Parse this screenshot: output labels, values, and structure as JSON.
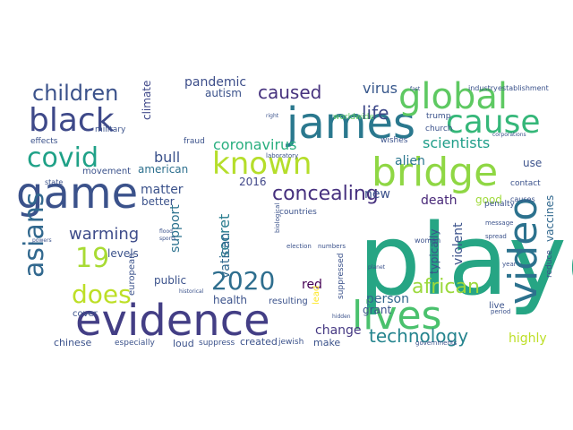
{
  "words": [
    {
      "text": "player",
      "color": "#26a584"
    },
    {
      "text": "james",
      "color": "#2a788e"
    },
    {
      "text": "evidence",
      "color": "#433e85"
    },
    {
      "text": "game",
      "color": "#3b528b"
    },
    {
      "text": "bridge",
      "color": "#8fd744"
    },
    {
      "text": "global",
      "color": "#5ec962"
    },
    {
      "text": "video",
      "color": "#2c728e"
    },
    {
      "text": "lives",
      "color": "#4ac16d"
    },
    {
      "text": "cause",
      "color": "#35b779"
    },
    {
      "text": "black",
      "color": "#3e4989"
    },
    {
      "text": "known",
      "color": "#b5de2b"
    },
    {
      "text": "asians",
      "color": "#31688e"
    },
    {
      "text": "covid",
      "color": "#1fa187"
    },
    {
      "text": "children",
      "color": "#3b528b"
    },
    {
      "text": "2020",
      "color": "#2e6e8e"
    },
    {
      "text": "does",
      "color": "#bddf26"
    },
    {
      "text": "19",
      "color": "#a8db34"
    },
    {
      "text": "caused",
      "color": "#46327e"
    },
    {
      "text": "concealing",
      "color": "#46307e"
    },
    {
      "text": "african",
      "color": "#9bd93c"
    },
    {
      "text": "technology",
      "color": "#25848e"
    },
    {
      "text": "life",
      "color": "#3e4989"
    },
    {
      "text": "warming",
      "color": "#3e4c8a"
    },
    {
      "text": "coronavirus",
      "color": "#29af7f"
    },
    {
      "text": "scientists",
      "color": "#1f9e89"
    },
    {
      "text": "pandemic",
      "color": "#3d4e8a"
    },
    {
      "text": "virus",
      "color": "#38588c"
    },
    {
      "text": "matter",
      "color": "#3b528b"
    },
    {
      "text": "bull",
      "color": "#3b528b"
    },
    {
      "text": "american",
      "color": "#2d708e"
    },
    {
      "text": "secret",
      "color": "#287c8e"
    },
    {
      "text": "support",
      "color": "#2c728e"
    },
    {
      "text": "vatican",
      "color": "#30688e"
    },
    {
      "text": "death",
      "color": "#482878"
    },
    {
      "text": "violent",
      "color": "#3b528b"
    },
    {
      "text": "vaccines",
      "color": "#31688e"
    },
    {
      "text": "alien",
      "color": "#2a768e"
    },
    {
      "text": "new",
      "color": "#3b518b"
    },
    {
      "text": "highly",
      "color": "#bddf26"
    },
    {
      "text": "red",
      "color": "#440154"
    },
    {
      "text": "person",
      "color": "#31688e"
    },
    {
      "text": "change",
      "color": "#453882"
    },
    {
      "text": "climate",
      "color": "#3f4889"
    },
    {
      "text": "autism",
      "color": "#3b528b"
    },
    {
      "text": "2016",
      "color": "#404688"
    },
    {
      "text": "better",
      "color": "#3b528b"
    },
    {
      "text": "levels",
      "color": "#3b528b"
    },
    {
      "text": "public",
      "color": "#3b528b"
    },
    {
      "text": "use",
      "color": "#3b528b"
    },
    {
      "text": "good",
      "color": "#9fda3a"
    },
    {
      "text": "typically",
      "color": "#3b528b"
    },
    {
      "text": "health",
      "color": "#3b528b"
    },
    {
      "text": "grant",
      "color": "#3b528b"
    },
    {
      "text": "resulting",
      "color": "#3b528b"
    },
    {
      "text": "chinese",
      "color": "#3b528b"
    },
    {
      "text": "especially",
      "color": "#3b528b"
    },
    {
      "text": "loud",
      "color": "#3b528b"
    },
    {
      "text": "created",
      "color": "#3b528b"
    },
    {
      "text": "jewish",
      "color": "#3b528b"
    },
    {
      "text": "make",
      "color": "#3b528b"
    },
    {
      "text": "live",
      "color": "#3b528b"
    },
    {
      "text": "european",
      "color": "#3b528b"
    },
    {
      "text": "lead",
      "color": "#fde725"
    },
    {
      "text": "suppressed",
      "color": "#3b528b"
    },
    {
      "text": "cover",
      "color": "#3b528b"
    },
    {
      "text": "movement",
      "color": "#3b528b"
    },
    {
      "text": "effects",
      "color": "#3b528b"
    },
    {
      "text": "military",
      "color": "#3b528b"
    },
    {
      "text": "worldwide",
      "color": "#5ec962"
    },
    {
      "text": "trump",
      "color": "#3b528b"
    },
    {
      "text": "church",
      "color": "#3b528b"
    },
    {
      "text": "wishes",
      "color": "#3b528b"
    },
    {
      "text": "fraud",
      "color": "#3b528b"
    },
    {
      "text": "countries",
      "color": "#3b528b"
    },
    {
      "text": "penalty",
      "color": "#3b528b"
    },
    {
      "text": "contact",
      "color": "#3b528b"
    },
    {
      "text": "state",
      "color": "#3b528b"
    },
    {
      "text": "biological",
      "color": "#3b528b"
    },
    {
      "text": "reduce",
      "color": "#3b528b"
    },
    {
      "text": "woman",
      "color": "#3b528b"
    },
    {
      "text": "suppress",
      "color": "#3b528b"
    },
    {
      "text": "governments",
      "color": "#3b528b"
    },
    {
      "text": "industry",
      "color": "#3b528b"
    },
    {
      "text": "establishment",
      "color": "#3b528b"
    },
    {
      "text": "laboratory",
      "color": "#3b528b"
    },
    {
      "text": "election",
      "color": "#3b528b"
    },
    {
      "text": "numbers",
      "color": "#3b528b"
    },
    {
      "text": "message",
      "color": "#3b528b"
    },
    {
      "text": "spread",
      "color": "#3b528b"
    },
    {
      "text": "period",
      "color": "#3b528b"
    },
    {
      "text": "causes",
      "color": "#3b528b"
    },
    {
      "text": "sports",
      "color": "#3b528b"
    },
    {
      "text": "flood",
      "color": "#3b528b"
    },
    {
      "text": "powers",
      "color": "#3b528b"
    },
    {
      "text": "year",
      "color": "#3b528b"
    },
    {
      "text": "hidden",
      "color": "#3b528b"
    },
    {
      "text": "historical",
      "color": "#3b528b"
    },
    {
      "text": "planet",
      "color": "#3b528b"
    },
    {
      "text": "corporations",
      "color": "#3b528b"
    },
    {
      "text": "right",
      "color": "#3b528b"
    },
    {
      "text": "fast",
      "color": "#3b528b"
    }
  ]
}
